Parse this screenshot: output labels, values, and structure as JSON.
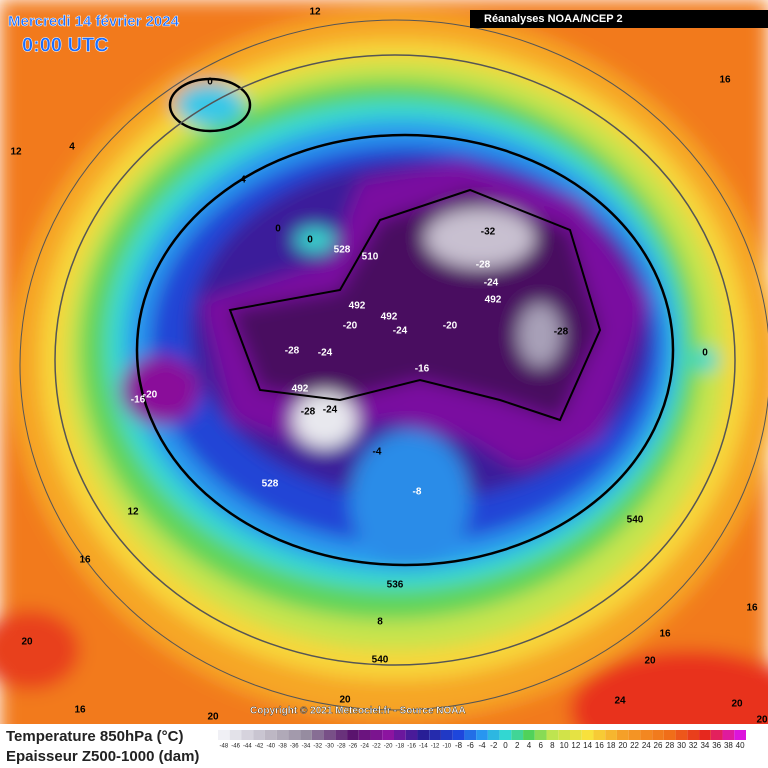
{
  "header": {
    "title": "Mercredi 14 février 2024",
    "time": "0:00 UTC",
    "source": "Réanalyses NOAA/NCEP 2"
  },
  "map": {
    "labels": [
      12,
      0,
      16,
      12,
      4,
      4,
      0,
      0,
      528,
      510,
      -32,
      -28,
      -24,
      492,
      492,
      492,
      -20,
      -24,
      -20,
      -28,
      -28,
      -24,
      0,
      -16,
      -16,
      -20,
      492,
      -28,
      -24,
      -4,
      528,
      -8,
      12,
      540,
      16,
      536,
      8,
      16,
      16,
      20,
      540,
      20,
      20,
      24,
      20,
      16,
      20,
      20
    ]
  },
  "footer": {
    "copyright": "Copyright © 2021 Meteociel.fr - Source NOAA"
  },
  "legend": {
    "temperature_label": "Temperature 850hPa (°C)",
    "thickness_label": "Epaisseur Z500-1000 (dam)",
    "scale": [
      -48,
      -46,
      -44,
      -42,
      -40,
      -38,
      -36,
      -34,
      -32,
      -30,
      -28,
      -26,
      -24,
      -22,
      -20,
      -18,
      -16,
      -14,
      -12,
      -10,
      -8,
      -6,
      -4,
      -2,
      0,
      2,
      4,
      6,
      8,
      10,
      12,
      14,
      16,
      18,
      20,
      22,
      24,
      26,
      28,
      30,
      32,
      34,
      36,
      38,
      40
    ]
  }
}
